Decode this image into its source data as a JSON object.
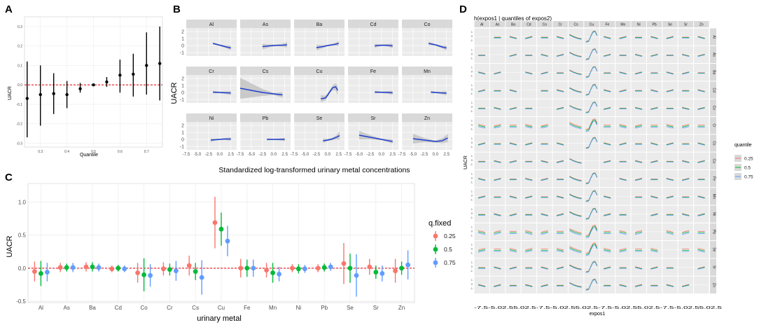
{
  "colors": {
    "panel_bg": "#ebebeb",
    "grid": "#ffffff",
    "strip": "#d9d9d9",
    "ribbon": "#bdbdbd",
    "line": "#1f3fd0",
    "ref_line": "#e8141c",
    "q25": "#f8766d",
    "q50": "#00ba38",
    "q75": "#619cff"
  },
  "chart_data": [
    {
      "panel": "A",
      "type": "scatter",
      "error_bars": true,
      "xlabel": "Quantile",
      "ylabel": "UACR",
      "xlim": [
        0.24,
        0.76
      ],
      "ylim": [
        -0.32,
        0.35
      ],
      "x_ticks": [
        0.3,
        0.4,
        0.5,
        0.6,
        0.7
      ],
      "x_tick_labels": [
        "0.3",
        "0.4",
        "0.5",
        "0.6",
        "0.7"
      ],
      "y_ticks": [
        -0.3,
        -0.2,
        -0.1,
        0.0,
        0.1,
        0.2,
        0.3
      ],
      "y_tick_labels": [
        "-0.3",
        "-0.2",
        "-0.1",
        "0.0",
        "0.1",
        "0.2",
        "0.3"
      ],
      "ref_line": 0,
      "points": [
        {
          "x": 0.25,
          "y": -0.07,
          "lo": -0.27,
          "hi": 0.12
        },
        {
          "x": 0.3,
          "y": -0.05,
          "lo": -0.21,
          "hi": 0.1
        },
        {
          "x": 0.35,
          "y": -0.045,
          "lo": -0.15,
          "hi": 0.06
        },
        {
          "x": 0.4,
          "y": -0.05,
          "lo": -0.12,
          "hi": 0.02
        },
        {
          "x": 0.45,
          "y": -0.02,
          "lo": -0.04,
          "hi": 0.01
        },
        {
          "x": 0.5,
          "y": 0.0,
          "lo": 0.0,
          "hi": 0.0
        },
        {
          "x": 0.55,
          "y": 0.015,
          "lo": -0.01,
          "hi": 0.04
        },
        {
          "x": 0.6,
          "y": 0.05,
          "lo": -0.04,
          "hi": 0.13
        },
        {
          "x": 0.65,
          "y": 0.055,
          "lo": -0.06,
          "hi": 0.16
        },
        {
          "x": 0.7,
          "y": 0.1,
          "lo": -0.05,
          "hi": 0.27
        },
        {
          "x": 0.75,
          "y": 0.11,
          "lo": -0.08,
          "hi": 0.3
        }
      ]
    },
    {
      "panel": "B",
      "type": "line",
      "facets": [
        {
          "name": "Al",
          "x": [
            -1.5,
            0,
            1.5,
            2.5
          ],
          "y": [
            0.3,
            0.05,
            -0.2,
            -0.35
          ],
          "band": [
            0.15,
            0.1,
            0.2,
            0.35
          ]
        },
        {
          "name": "As",
          "x": [
            -2.5,
            -1,
            0.5,
            2,
            3
          ],
          "y": [
            -0.15,
            -0.05,
            0.02,
            0.05,
            0.1
          ],
          "band": [
            0.4,
            0.2,
            0.1,
            0.2,
            0.4
          ]
        },
        {
          "name": "Ba",
          "x": [
            -2.5,
            -1,
            0,
            1.5,
            2.5
          ],
          "y": [
            -0.3,
            -0.15,
            0,
            0.15,
            0.3
          ],
          "band": [
            0.4,
            0.2,
            0.1,
            0.15,
            0.35
          ]
        },
        {
          "name": "Cd",
          "x": [
            -1.5,
            -0.5,
            0.5,
            1.5,
            2.5
          ],
          "y": [
            -0.05,
            0.02,
            0.05,
            0.02,
            -0.05
          ],
          "band": [
            0.3,
            0.15,
            0.1,
            0.2,
            0.35
          ]
        },
        {
          "name": "Co",
          "x": [
            -1.5,
            0,
            1.5,
            2.5
          ],
          "y": [
            0.3,
            0.1,
            -0.2,
            -0.35
          ],
          "band": [
            0.25,
            0.1,
            0.2,
            0.35
          ]
        },
        {
          "name": "Cr",
          "x": [
            -1.5,
            0,
            1.5,
            2.5
          ],
          "y": [
            0.05,
            0,
            -0.05,
            -0.08
          ],
          "band": [
            0.2,
            0.1,
            0.2,
            0.3
          ]
        },
        {
          "name": "Cs",
          "x": [
            -7.5,
            -5,
            -2.5,
            0,
            2
          ],
          "y": [
            0.6,
            0.3,
            0.0,
            -0.2,
            -0.35
          ],
          "band": [
            1.5,
            1.0,
            0.5,
            0.15,
            0.4
          ]
        },
        {
          "name": "Cu",
          "x": [
            -1.5,
            -0.5,
            0,
            0.5,
            1.2,
            1.8,
            2.3
          ],
          "y": [
            -0.9,
            -0.8,
            -0.4,
            0.1,
            0.7,
            0.8,
            0.3
          ],
          "band": [
            0.5,
            0.35,
            0.25,
            0.25,
            0.35,
            0.5,
            0.65
          ]
        },
        {
          "name": "Fe",
          "x": [
            -1.5,
            0,
            1.5,
            2.5
          ],
          "y": [
            0.05,
            0.02,
            0,
            -0.05
          ],
          "band": [
            0.2,
            0.1,
            0.2,
            0.3
          ]
        },
        {
          "name": "Mn",
          "x": [
            -1,
            0,
            1,
            2.5
          ],
          "y": [
            0.05,
            0,
            -0.05,
            -0.1
          ],
          "band": [
            0.2,
            0.1,
            0.15,
            0.3
          ]
        },
        {
          "name": "Ni",
          "x": [
            -2,
            -1,
            0,
            1,
            2.5
          ],
          "y": [
            -0.1,
            -0.05,
            0,
            0.05,
            0.05
          ],
          "band": [
            0.25,
            0.12,
            0.08,
            0.12,
            0.25
          ]
        },
        {
          "name": "Pb",
          "x": [
            -1.5,
            0,
            1.5,
            2.5
          ],
          "y": [
            0,
            0,
            0,
            0
          ],
          "band": [
            0.15,
            0.08,
            0.15,
            0.25
          ]
        },
        {
          "name": "Se",
          "x": [
            -1,
            0,
            1,
            2,
            2.7
          ],
          "y": [
            -0.2,
            -0.1,
            0.05,
            0.3,
            0.55
          ],
          "band": [
            0.3,
            0.15,
            0.15,
            0.3,
            0.6
          ]
        },
        {
          "name": "Sr",
          "x": [
            -5,
            -2.5,
            0,
            2.5
          ],
          "y": [
            0.6,
            0.3,
            0,
            -0.3
          ],
          "band": [
            0.6,
            0.3,
            0.1,
            0.3
          ]
        },
        {
          "name": "Zn",
          "x": [
            -5,
            -2.5,
            0,
            1.5,
            2.8
          ],
          "y": [
            0.1,
            -0.1,
            -0.3,
            -0.2,
            0.2
          ],
          "band": [
            0.7,
            0.3,
            0.15,
            0.35,
            0.6
          ]
        }
      ],
      "xlabel": "Standardized log-transformed urinary metal concentrations",
      "ylabel": "UACR",
      "xlim": [
        -7.5,
        3.8
      ],
      "ylim": [
        -1.5,
        2.5
      ],
      "x_ticks": [
        -7.5,
        -5.0,
        -2.5,
        0.0,
        2.5
      ],
      "x_tick_labels": [
        "-7.5",
        "-5.0",
        "-2.5",
        "0.0",
        "2.5"
      ],
      "y_ticks": [
        -1,
        0,
        1,
        2
      ],
      "y_tick_labels": [
        "-1",
        "0",
        "1",
        "2"
      ]
    },
    {
      "panel": "C",
      "type": "scatter",
      "error_bars": true,
      "xlabel": "urinary metal",
      "ylabel": "UACR",
      "ylim": [
        -0.52,
        1.28
      ],
      "y_ticks": [
        -0.5,
        0.0,
        0.5,
        1.0
      ],
      "y_tick_labels": [
        "-0.5",
        "0.0",
        "0.5",
        "1.0"
      ],
      "legend_title": "q.fixed",
      "legend_position": "right",
      "categories": [
        "Al",
        "As",
        "Ba",
        "Cd",
        "Co",
        "Cr",
        "Cs",
        "Cu",
        "Fe",
        "Mn",
        "Ni",
        "Pb",
        "Se",
        "Sr",
        "Zn"
      ],
      "series": [
        {
          "name": "0.25",
          "values": [
            -0.05,
            0.01,
            0.02,
            -0.01,
            -0.07,
            -0.01,
            0.04,
            0.69,
            0.0,
            -0.03,
            0.0,
            0.0,
            0.07,
            0.02,
            -0.04
          ],
          "lo": [
            -0.2,
            -0.06,
            -0.05,
            -0.06,
            -0.22,
            -0.11,
            -0.11,
            0.3,
            -0.14,
            -0.14,
            -0.06,
            -0.06,
            -0.24,
            -0.1,
            -0.22
          ],
          "hi": [
            0.1,
            0.08,
            0.09,
            0.04,
            0.08,
            0.09,
            0.19,
            1.08,
            0.14,
            0.08,
            0.06,
            0.06,
            0.38,
            0.14,
            0.14
          ]
        },
        {
          "name": "0.5",
          "values": [
            -0.08,
            0.01,
            0.02,
            0.0,
            -0.1,
            -0.02,
            -0.05,
            0.59,
            0.0,
            -0.07,
            -0.01,
            0.01,
            0.0,
            -0.06,
            0.0
          ],
          "lo": [
            -0.27,
            -0.05,
            -0.05,
            -0.05,
            -0.35,
            -0.11,
            -0.18,
            0.34,
            -0.13,
            -0.22,
            -0.08,
            -0.05,
            -0.22,
            -0.16,
            -0.1
          ],
          "hi": [
            0.11,
            0.07,
            0.09,
            0.05,
            0.15,
            0.07,
            0.08,
            0.84,
            0.13,
            0.08,
            0.06,
            0.07,
            0.22,
            0.04,
            0.1
          ]
        },
        {
          "name": "0.75",
          "values": [
            -0.06,
            0.01,
            0.01,
            -0.01,
            -0.11,
            -0.04,
            -0.14,
            0.41,
            0.0,
            -0.09,
            -0.01,
            0.02,
            -0.11,
            -0.08,
            0.05
          ],
          "lo": [
            -0.2,
            -0.06,
            -0.05,
            -0.06,
            -0.28,
            -0.19,
            -0.4,
            0.18,
            -0.13,
            -0.2,
            -0.07,
            -0.04,
            -0.43,
            -0.2,
            -0.17
          ],
          "hi": [
            0.08,
            0.08,
            0.07,
            0.04,
            0.06,
            0.11,
            0.12,
            0.64,
            0.13,
            0.02,
            0.05,
            0.08,
            0.21,
            0.04,
            0.27
          ]
        }
      ]
    },
    {
      "panel": "D",
      "type": "line",
      "facets": true,
      "title": "h(expos1 | quantiles of expos2)",
      "xlabel": "expos1",
      "ylabel": "UACR",
      "x_tick_text": "-7.5-5.02.55.02.5-7.5-5.02.55.02.5-7.5-5.02.55.02.5-7.5-5.02.55.02.5",
      "y_tick_labels": [
        "1",
        "0",
        "-1"
      ],
      "legend_title": "quantile",
      "legend_position": "right",
      "legend_items": [
        "0.25",
        "0.5",
        "0.75"
      ],
      "metals": [
        "Al",
        "As",
        "Ba",
        "Cd",
        "Co",
        "Cr",
        "Cs",
        "Cu",
        "Fe",
        "Mn",
        "Ni",
        "Pb",
        "Se",
        "Sr",
        "Zn"
      ]
    }
  ],
  "labels": {
    "A": "A",
    "B": "B",
    "C": "C",
    "D": "D"
  }
}
